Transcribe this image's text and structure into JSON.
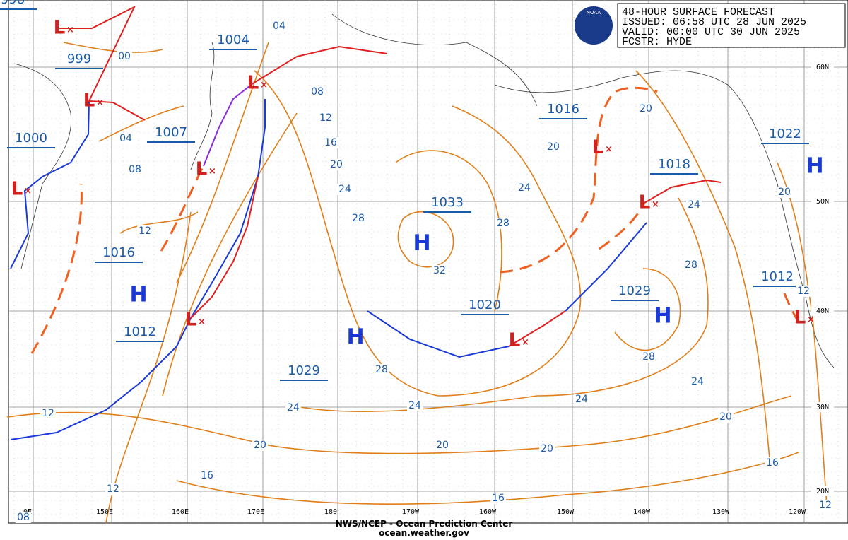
{
  "header": {
    "logo": "NOAA",
    "title": "48-HOUR SURFACE FORECAST",
    "issued": "ISSUED: 06:58 UTC 28 JUN 2025",
    "valid": "VALID:  00:00 UTC 30 JUN 2025",
    "forecaster": "FCSTR: HYDE"
  },
  "footer": {
    "agency": "NWS/NCEP - Ocean Prediction Center",
    "url": "ocean.weather.gov"
  },
  "pressure_labels": [
    "998",
    "1004",
    "999",
    "1000",
    "1007",
    "1016",
    "1033",
    "1016",
    "1018",
    "1022",
    "1012",
    "1020",
    "1029",
    "1029",
    "1012"
  ],
  "highs": [
    "H",
    "H",
    "H",
    "H",
    "H"
  ],
  "lows": [
    "L",
    "L",
    "L",
    "L",
    "L",
    "L",
    "L",
    "L",
    "L",
    "L"
  ],
  "isobar_labels": [
    "04",
    "00",
    "08",
    "12",
    "16",
    "20",
    "24",
    "28",
    "32",
    "28",
    "24",
    "20",
    "20",
    "20",
    "24",
    "28",
    "28",
    "24",
    "24",
    "20",
    "16",
    "12",
    "12",
    "16",
    "20",
    "20",
    "24",
    "24",
    "20",
    "16",
    "12",
    "12",
    "28",
    "12",
    "08",
    "04",
    "08"
  ],
  "latitudes": [
    "60N",
    "50N",
    "40N",
    "30N",
    "20N"
  ],
  "longitudes": [
    "0E",
    "150E",
    "160E",
    "170E",
    "180",
    "170W",
    "160W",
    "150W",
    "140W",
    "130W",
    "120W"
  ]
}
